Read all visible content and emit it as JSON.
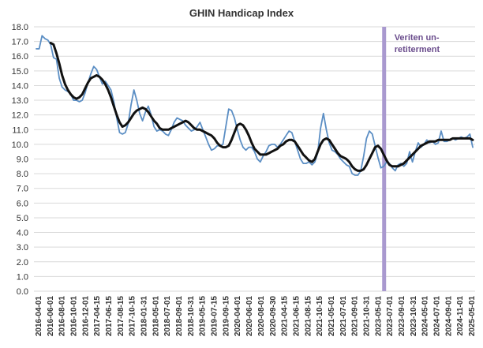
{
  "chart_data": {
    "type": "line",
    "title": "GHIN Handicap Index",
    "xlabel": "",
    "ylabel": "",
    "ylim": [
      0,
      18
    ],
    "ytick_step": 1,
    "grid": "horizontal",
    "colors": {
      "raw": "#5b8ec4",
      "smoothed": "#111111",
      "marker": "#a999cf",
      "grid": "#d9d9d9"
    },
    "x_tick_labels": [
      "2016-04-01",
      "2016-06-01",
      "2016-08-01",
      "2016-10-01",
      "2016-12-01",
      "2017-04-15",
      "2017-06-15",
      "2017-08-15",
      "2017-10-15",
      "2018-01-31",
      "2018-05-01",
      "2018-07-01",
      "2018-09-01",
      "2018-10-31",
      "2019-05-15",
      "2019-07-15",
      "2019-09-15",
      "2020-04-01",
      "2020-06-01",
      "2020-08-01",
      "2020-09-30",
      "2021-04-15",
      "2021-06-15",
      "2021-08-15",
      "2021-10-15",
      "2021-05-01",
      "2021-07-01",
      "2021-09-01",
      "2021-10-31",
      "2023-05-01",
      "2023-07-01",
      "2023-09-01",
      "2023-10-31",
      "2024-05-01",
      "2024-07-01",
      "2024-09-01",
      "2024-11-01",
      "2025-05-01"
    ],
    "vertical_marker": {
      "index": 29.5,
      "label_lines": [
        "Veriten un-",
        "retiterment"
      ]
    },
    "series": [
      {
        "style": "raw",
        "values": [
          16.5,
          16.5,
          17.4,
          17.2,
          17.1,
          16.8,
          15.9,
          15.8,
          14.5,
          13.9,
          13.7,
          13.6,
          13.4,
          13.0,
          13.0,
          12.9,
          13.0,
          13.5,
          14.2,
          14.8,
          15.3,
          15.1,
          14.6,
          14.1,
          14.3,
          14.0,
          13.7,
          12.9,
          11.8,
          10.8,
          10.7,
          10.8,
          11.4,
          12.7,
          13.7,
          13.0,
          12.1,
          11.6,
          12.2,
          12.6,
          12.0,
          11.2,
          10.9,
          11.0,
          10.9,
          10.7,
          10.6,
          11.0,
          11.5,
          11.8,
          11.7,
          11.6,
          11.3,
          11.1,
          10.9,
          11.0,
          11.2,
          11.5,
          11.0,
          10.5,
          10.0,
          9.6,
          9.7,
          9.9,
          9.9,
          10.0,
          11.2,
          12.4,
          12.3,
          11.8,
          11.0,
          10.3,
          9.8,
          9.6,
          9.8,
          9.8,
          9.5,
          9.0,
          8.8,
          9.2,
          9.5,
          9.9,
          10.0,
          10.0,
          9.8,
          10.0,
          10.3,
          10.6,
          10.9,
          10.8,
          10.2,
          9.6,
          9.0,
          8.7,
          8.7,
          8.8,
          8.6,
          8.8,
          9.4,
          11.1,
          12.1,
          11.0,
          10.1,
          9.6,
          9.5,
          9.3,
          9.0,
          8.8,
          8.6,
          8.5,
          8.0,
          7.9,
          7.9,
          8.2,
          9.2,
          10.4,
          10.9,
          10.7,
          9.9,
          9.1,
          8.4,
          8.5,
          8.8,
          8.7,
          8.4,
          8.2,
          8.6,
          8.7,
          8.5,
          8.7,
          9.5,
          8.8,
          9.5,
          10.1,
          9.8,
          10.0,
          10.3,
          10.1,
          10.2,
          10.0,
          10.1,
          10.9,
          10.2,
          10.2,
          10.3,
          10.4,
          10.3,
          10.4,
          10.5,
          10.4,
          10.5,
          10.7,
          9.8
        ]
      },
      {
        "style": "smoothed",
        "values": [
          null,
          null,
          null,
          null,
          null,
          16.9,
          16.8,
          16.2,
          15.5,
          14.7,
          14.1,
          13.7,
          13.4,
          13.2,
          13.1,
          13.2,
          13.4,
          13.8,
          14.2,
          14.5,
          14.6,
          14.7,
          14.6,
          14.4,
          14.1,
          13.7,
          13.2,
          12.6,
          12.0,
          11.5,
          11.2,
          11.3,
          11.5,
          11.8,
          12.1,
          12.3,
          12.4,
          12.5,
          12.4,
          12.2,
          11.9,
          11.6,
          11.4,
          11.1,
          11.0,
          11.0,
          11.0,
          11.1,
          11.2,
          11.3,
          11.4,
          11.5,
          11.6,
          11.5,
          11.3,
          11.1,
          11.0,
          11.0,
          10.9,
          10.8,
          10.7,
          10.6,
          10.4,
          10.1,
          9.9,
          9.8,
          9.8,
          9.9,
          10.3,
          10.8,
          11.3,
          11.4,
          11.3,
          11.0,
          10.6,
          10.1,
          9.7,
          9.5,
          9.3,
          9.3,
          9.3,
          9.4,
          9.5,
          9.6,
          9.7,
          9.9,
          10.0,
          10.2,
          10.3,
          10.3,
          10.2,
          9.9,
          9.6,
          9.3,
          9.1,
          8.9,
          8.8,
          9.0,
          9.5,
          10.0,
          10.3,
          10.4,
          10.3,
          10.0,
          9.7,
          9.4,
          9.2,
          9.1,
          9.0,
          8.8,
          8.5,
          8.3,
          8.2,
          8.2,
          8.3,
          8.6,
          9.0,
          9.4,
          9.8,
          9.9,
          9.7,
          9.3,
          8.9,
          8.6,
          8.5,
          8.5,
          8.5,
          8.6,
          8.7,
          8.9,
          9.1,
          9.3,
          9.5,
          9.7,
          9.9,
          10.0,
          10.1,
          10.2,
          10.2,
          10.2,
          10.3,
          10.3,
          10.3,
          10.3,
          10.3,
          10.4,
          10.4,
          10.4,
          10.4,
          10.4,
          10.4,
          10.4,
          10.3
        ]
      }
    ]
  }
}
